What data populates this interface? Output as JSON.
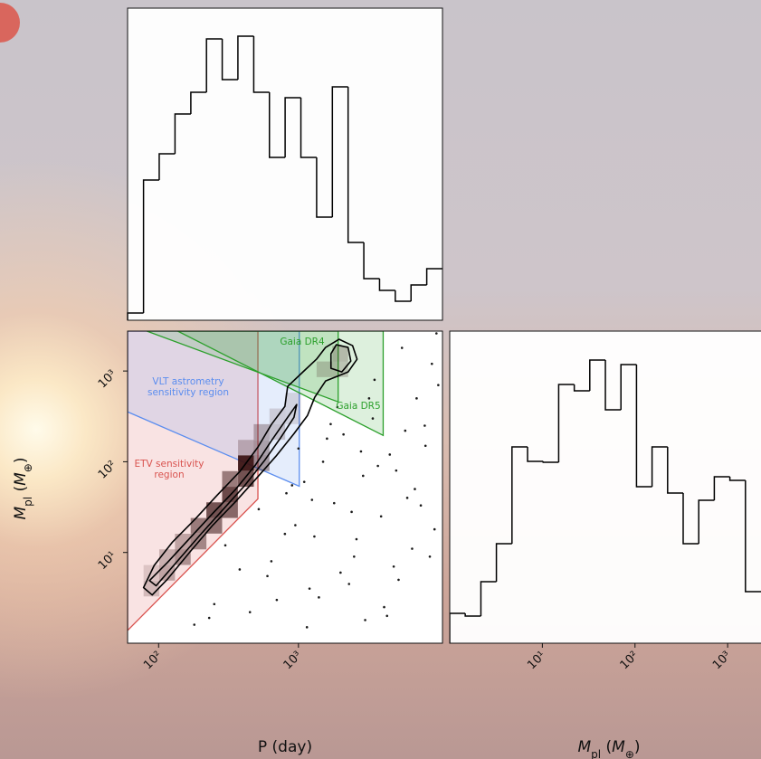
{
  "chart_data": [
    {
      "type": "histogram",
      "bins": [
        60,
        78,
        101,
        131,
        170,
        220,
        285,
        369,
        479,
        620,
        803,
        1041,
        1349,
        1748,
        2265,
        2934,
        3802,
        4926,
        6383,
        8270,
        10715
      ],
      "values": [
        8,
        155,
        184,
        228,
        252,
        311,
        266,
        314,
        252,
        180,
        246,
        180,
        114,
        258,
        86,
        46,
        33,
        21,
        39,
        57
      ],
      "xlim": [
        60,
        10715
      ],
      "ylim": [
        0,
        345
      ],
      "log_x": true,
      "color": "#000000"
    },
    {
      "type": "density2d",
      "xlabel": "P (day)",
      "ylabel": [
        "M",
        "pl",
        " (",
        "M",
        "⊕",
        ")"
      ],
      "xlim": [
        60,
        10715
      ],
      "ylim": [
        1,
        2754
      ],
      "log_x": true,
      "log_y": true,
      "xticks": [
        {
          "value": 100,
          "label": "10²"
        },
        {
          "value": 1000,
          "label": "10³"
        }
      ],
      "yticks": [
        {
          "value": 10,
          "label": "10¹"
        },
        {
          "value": 100,
          "label": "10²"
        },
        {
          "value": 1000,
          "label": "10³"
        }
      ],
      "regions": [
        {
          "label_lines": [
            "ETV sensitivity",
            "region"
          ],
          "color": "#d9534f",
          "x": [
            60,
            513,
            513,
            60
          ],
          "y": [
            1.38,
            39,
            2754,
            2754
          ]
        },
        {
          "label_lines": [
            "VLT astrometry",
            "sensitivity region"
          ],
          "color": "#5b8def",
          "x": [
            60,
            1014,
            1014,
            60
          ],
          "y": [
            355,
            53.7,
            2754,
            2754
          ]
        },
        {
          "label_lines": [
            "Gaia DR4"
          ],
          "color": "#2ca02c",
          "x": [
            82.4,
            1923,
            1923
          ],
          "y": [
            2754,
            457,
            2754
          ]
        },
        {
          "label_lines": [
            "Gaia DR5"
          ],
          "color": "#2ca02c",
          "x": [
            137,
            4036,
            4036
          ],
          "y": [
            2754,
            195,
            2754
          ]
        }
      ],
      "density": {
        "x": [
          88.9,
          88.9,
          115,
          115,
          149,
          149,
          193,
          193,
          250,
          250,
          324,
          324,
          421,
          421,
          324,
          545,
          545,
          545,
          706,
          706,
          421,
          914,
          914,
          1535,
          1990,
          1990
        ],
        "y": [
          4.0,
          5.97,
          5.97,
          8.89,
          8.89,
          13.2,
          13.2,
          19.7,
          19.7,
          29.3,
          29.3,
          43.5,
          64.7,
          96.4,
          64.7,
          96.4,
          143,
          213,
          213,
          317,
          143,
          317,
          472,
          1045,
          1552,
          1045
        ],
        "values": [
          0.2,
          0.15,
          0.3,
          0.25,
          0.4,
          0.3,
          0.45,
          0.5,
          0.55,
          0.7,
          0.6,
          0.75,
          0.7,
          0.95,
          0.5,
          0.4,
          0.35,
          0.3,
          0.2,
          0.15,
          0.25,
          0.12,
          0.12,
          0.2,
          0.25,
          0.2
        ],
        "color": "#3b1414"
      },
      "contours": [
        {
          "x": [
            78,
            93,
            125,
            181,
            263,
            381,
            513,
            640,
            800,
            837,
            1077,
            1346,
            1563,
            1951,
            2438,
            2626,
            2265,
            1563,
            1307,
            1161,
            929,
            690,
            498,
            353,
            244,
            168,
            116,
            90
          ],
          "y": [
            4.1,
            7.2,
            12.9,
            23,
            43,
            78,
            145,
            257,
            407,
            676,
            977,
            1349,
            1820,
            2239,
            1905,
            1349,
            977,
            776,
            513,
            324,
            204,
            115,
            65,
            36,
            20,
            10.2,
            5.1,
            3.4
          ]
        },
        {
          "x": [
            86,
            116,
            168,
            244,
            353,
            490,
            640,
            837,
            971,
            929,
            743,
            569,
            410,
            296,
            201,
            137,
            96
          ],
          "y": [
            4.9,
            7.8,
            14.5,
            27,
            49,
            91,
            170,
            309,
            427,
            309,
            182,
            102,
            54,
            31,
            16,
            8.1,
            4.3
          ]
        },
        {
          "x": [
            1708,
            1866,
            2265,
            2368,
            2042,
            1708
          ],
          "y": [
            1549,
            1950,
            1820,
            1288,
            977,
            1072
          ]
        }
      ],
      "scatter": {
        "x": [
          300,
          520,
          640,
          820,
          950,
          1100,
          1300,
          1500,
          1800,
          2100,
          2500,
          2900,
          3400,
          3900,
          4500,
          5200,
          6000,
          7000,
          8100,
          9400,
          700,
          900,
          1200,
          1600,
          2000,
          2600,
          3200,
          4100,
          5000,
          6500,
          8000,
          10000,
          450,
          600,
          1000,
          1400,
          1900,
          2400,
          3000,
          3700,
          4800,
          5800,
          7500,
          9000,
          250,
          380,
          800,
          1150,
          1700,
          2300,
          2800,
          3500,
          4300,
          5500,
          6800,
          8700,
          180,
          230,
          1250,
          9700
        ],
        "y": [
          12,
          30,
          8,
          45,
          20,
          60,
          15,
          100,
          35,
          200,
          9,
          70,
          300,
          25,
          120,
          5,
          40,
          500,
          150,
          18,
          3,
          55,
          4,
          180,
          6,
          14,
          500,
          2.5,
          80,
          11,
          250,
          700,
          2.2,
          5.5,
          140,
          3.2,
          400,
          28,
          1.8,
          90,
          7,
          220,
          33,
          1200,
          2.7,
          6.5,
          16,
          1.5,
          260,
          4.5,
          130,
          800,
          2,
          1800,
          50,
          9,
          1.6,
          1.9,
          38,
          2600
        ],
        "color": "#1a1a1a"
      }
    },
    {
      "type": "histogram",
      "bins": [
        1,
        1.47,
        2.17,
        3.19,
        4.7,
        6.92,
        10.2,
        15.0,
        22.1,
        32.5,
        47.9,
        70.5,
        103.8,
        152.8,
        224.9,
        331.1,
        487.5,
        717.8,
        1057,
        1556,
        2291
      ],
      "values": [
        33,
        30,
        68,
        110,
        217,
        201,
        200,
        286,
        279,
        313,
        258,
        308,
        173,
        217,
        166,
        110,
        158,
        184,
        180,
        57
      ],
      "xlim": [
        1,
        2291
      ],
      "ylim": [
        0,
        345
      ],
      "log_x": true,
      "color": "#000000",
      "xlabel": [
        "M",
        "pl",
        " (",
        "M",
        "⊕",
        ")"
      ],
      "xticks": [
        {
          "value": 10,
          "label": "10¹"
        },
        {
          "value": 100,
          "label": "10²"
        },
        {
          "value": 1000,
          "label": "10³"
        }
      ]
    }
  ]
}
